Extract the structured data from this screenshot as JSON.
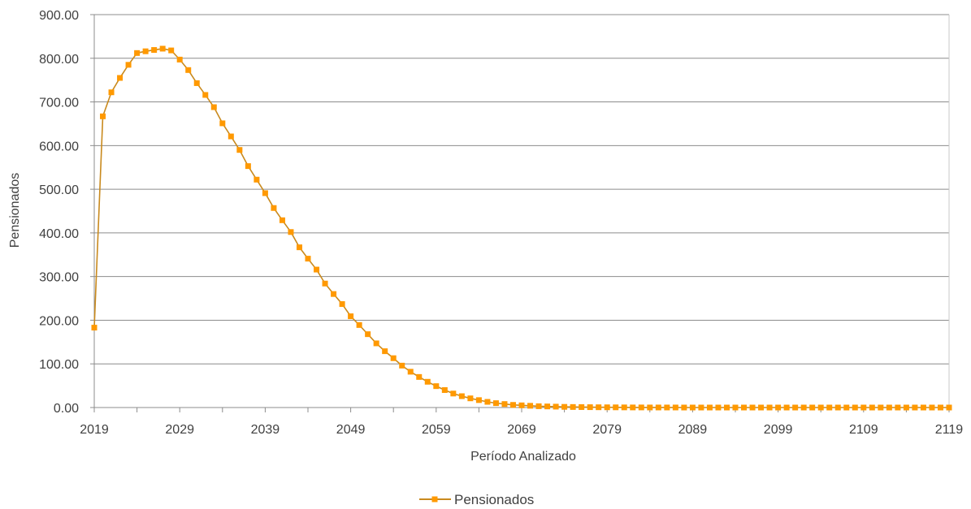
{
  "chart_data": {
    "type": "line",
    "title": "",
    "xlabel": "Período Analizado",
    "ylabel": "Pensionados",
    "xlim": [
      2019,
      2119
    ],
    "ylim": [
      0,
      900
    ],
    "grid": true,
    "legend_position": "bottom",
    "x_ticks": [
      "2019",
      "2029",
      "2039",
      "2049",
      "2059",
      "2069",
      "2079",
      "2089",
      "2099",
      "2109",
      "2119"
    ],
    "y_ticks": [
      "0.00",
      "100.00",
      "200.00",
      "300.00",
      "400.00",
      "500.00",
      "600.00",
      "700.00",
      "800.00",
      "900.00"
    ],
    "series": [
      {
        "name": "Pensionados",
        "color": "#ff9900",
        "line_color": "#c98a1e",
        "x": [
          2019,
          2020,
          2021,
          2022,
          2023,
          2024,
          2025,
          2026,
          2027,
          2028,
          2029,
          2030,
          2031,
          2032,
          2033,
          2034,
          2035,
          2036,
          2037,
          2038,
          2039,
          2040,
          2041,
          2042,
          2043,
          2044,
          2045,
          2046,
          2047,
          2048,
          2049,
          2050,
          2051,
          2052,
          2053,
          2054,
          2055,
          2056,
          2057,
          2058,
          2059,
          2060,
          2061,
          2062,
          2063,
          2064,
          2065,
          2066,
          2067,
          2068,
          2069,
          2070,
          2071,
          2072,
          2073,
          2074,
          2075,
          2076,
          2077,
          2078,
          2079,
          2080,
          2081,
          2082,
          2083,
          2084,
          2085,
          2086,
          2087,
          2088,
          2089,
          2090,
          2091,
          2092,
          2093,
          2094,
          2095,
          2096,
          2097,
          2098,
          2099,
          2100,
          2101,
          2102,
          2103,
          2104,
          2105,
          2106,
          2107,
          2108,
          2109,
          2110,
          2111,
          2112,
          2113,
          2114,
          2115,
          2116,
          2117,
          2118,
          2119
        ],
        "values": [
          183,
          667,
          722,
          755,
          785,
          812,
          816,
          819,
          822,
          818,
          797,
          773,
          743,
          716,
          688,
          651,
          621,
          590,
          553,
          522,
          491,
          457,
          429,
          402,
          367,
          341,
          316,
          284,
          260,
          237,
          209,
          189,
          168,
          147,
          129,
          113,
          96,
          82,
          70,
          59,
          49,
          40,
          32,
          26,
          21,
          17,
          13,
          10,
          8,
          6,
          5,
          4,
          3,
          2.5,
          2,
          1.5,
          1.2,
          1,
          0.8,
          0.6,
          0.5,
          0.4,
          0.3,
          0.2,
          0.2,
          0.1,
          0.1,
          0.1,
          0.1,
          0,
          0,
          0,
          0,
          0,
          0,
          0,
          0,
          0,
          0,
          0,
          0,
          0,
          0,
          0,
          0,
          0,
          0,
          0,
          0,
          0,
          0,
          0,
          0,
          0,
          0,
          0,
          0,
          0,
          0,
          0,
          0
        ]
      }
    ]
  }
}
